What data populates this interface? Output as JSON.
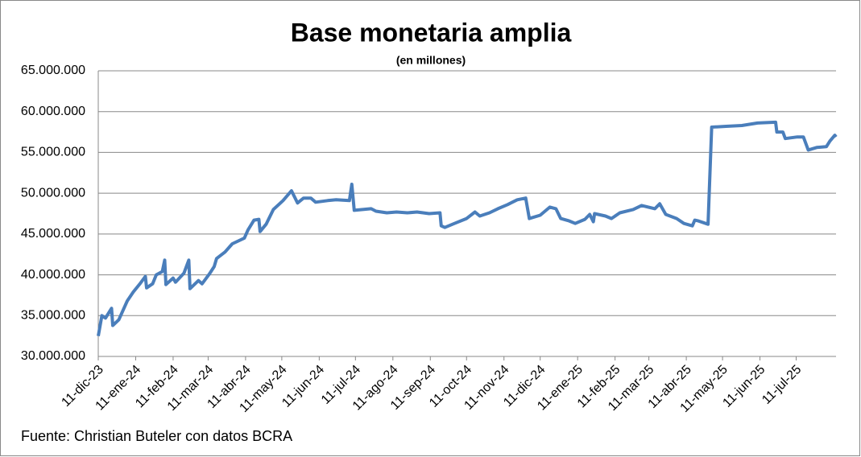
{
  "chart_data": {
    "type": "line",
    "title": "Base monetaria amplia",
    "subtitle": "(en millones)",
    "source": "Fuente: Christian Buteler  con datos BCRA",
    "color": "#4a7ebb",
    "grid": true,
    "x": [
      "2023-12-11",
      "2023-12-14",
      "2023-12-17",
      "2023-12-22",
      "2023-12-23",
      "2023-12-28",
      "2024-01-04",
      "2024-01-09",
      "2024-01-15",
      "2024-01-19",
      "2024-01-20",
      "2024-01-25",
      "2024-01-28",
      "2024-02-02",
      "2024-02-04",
      "2024-02-05",
      "2024-02-11",
      "2024-02-13",
      "2024-02-20",
      "2024-02-24",
      "2024-02-25",
      "2024-03-03",
      "2024-03-06",
      "2024-03-12",
      "2024-03-16",
      "2024-03-18",
      "2024-03-25",
      "2024-03-31",
      "2024-04-10",
      "2024-04-13",
      "2024-04-18",
      "2024-04-22",
      "2024-04-23",
      "2024-04-28",
      "2024-05-04",
      "2024-05-12",
      "2024-05-19",
      "2024-05-24",
      "2024-05-29",
      "2024-06-04",
      "2024-06-08",
      "2024-06-18",
      "2024-06-25",
      "2024-07-06",
      "2024-07-08",
      "2024-07-10",
      "2024-07-24",
      "2024-07-28",
      "2024-08-06",
      "2024-08-14",
      "2024-08-23",
      "2024-08-31",
      "2024-09-10",
      "2024-09-19",
      "2024-09-20",
      "2024-09-23",
      "2024-10-01",
      "2024-10-11",
      "2024-10-18",
      "2024-10-22",
      "2024-10-30",
      "2024-11-06",
      "2024-11-14",
      "2024-11-22",
      "2024-11-29",
      "2024-12-02",
      "2024-12-11",
      "2024-12-19",
      "2024-12-24",
      "2024-12-28",
      "2025-01-04",
      "2025-01-09",
      "2025-01-17",
      "2025-01-21",
      "2025-01-24",
      "2025-01-25",
      "2025-02-03",
      "2025-02-08",
      "2025-02-15",
      "2025-02-26",
      "2025-03-05",
      "2025-03-16",
      "2025-03-20",
      "2025-03-25",
      "2025-04-03",
      "2025-04-09",
      "2025-04-16",
      "2025-04-18",
      "2025-04-21",
      "2025-04-29",
      "2025-05-02",
      "2025-05-14",
      "2025-05-27",
      "2025-06-09",
      "2025-06-24",
      "2025-06-25",
      "2025-06-30",
      "2025-07-02",
      "2025-07-12",
      "2025-07-17",
      "2025-07-21",
      "2025-07-28",
      "2025-08-05",
      "2025-08-08",
      "2025-08-12",
      "2025-08-13"
    ],
    "values": [
      32500000,
      35000000,
      34700000,
      35900000,
      33800000,
      34500000,
      36800000,
      37900000,
      39000000,
      39800000,
      38400000,
      38900000,
      40000000,
      40400000,
      41800000,
      38800000,
      39600000,
      39100000,
      40200000,
      41800000,
      38300000,
      39300000,
      38900000,
      40100000,
      41000000,
      42000000,
      42800000,
      43800000,
      44500000,
      45500000,
      46700000,
      46800000,
      45300000,
      46200000,
      48000000,
      49100000,
      50300000,
      48800000,
      49400000,
      49400000,
      48900000,
      49100000,
      49200000,
      49100000,
      51100000,
      47900000,
      48100000,
      47800000,
      47600000,
      47700000,
      47600000,
      47700000,
      47500000,
      47600000,
      46000000,
      45800000,
      46300000,
      46900000,
      47700000,
      47200000,
      47600000,
      48100000,
      48600000,
      49200000,
      49400000,
      46900000,
      47300000,
      48300000,
      48100000,
      46900000,
      46600000,
      46300000,
      46800000,
      47400000,
      46500000,
      47500000,
      47200000,
      46900000,
      47600000,
      48000000,
      48500000,
      48100000,
      48700000,
      47400000,
      46900000,
      46300000,
      46000000,
      46700000,
      46600000,
      46200000,
      58100000,
      58200000,
      58300000,
      58600000,
      58700000,
      57500000,
      57500000,
      56700000,
      56900000,
      56900000,
      55300000,
      55600000,
      55700000,
      56400000,
      57100000,
      56900000
    ],
    "xlim": [
      "2023-12-11",
      "2025-08-13"
    ],
    "xticks": [
      {
        "value": "2023-12-11",
        "label": "11-dic-23"
      },
      {
        "value": "2024-01-11",
        "label": "11-ene-24"
      },
      {
        "value": "2024-02-11",
        "label": "11-feb-24"
      },
      {
        "value": "2024-03-11",
        "label": "11-mar-24"
      },
      {
        "value": "2024-04-11",
        "label": "11-abr-24"
      },
      {
        "value": "2024-05-11",
        "label": "11-may-24"
      },
      {
        "value": "2024-06-11",
        "label": "11-jun-24"
      },
      {
        "value": "2024-07-11",
        "label": "11-jul-24"
      },
      {
        "value": "2024-08-11",
        "label": "11-ago-24"
      },
      {
        "value": "2024-09-11",
        "label": "11-sep-24"
      },
      {
        "value": "2024-10-11",
        "label": "11-oct-24"
      },
      {
        "value": "2024-11-11",
        "label": "11-nov-24"
      },
      {
        "value": "2024-12-11",
        "label": "11-dic-24"
      },
      {
        "value": "2025-01-11",
        "label": "11-ene-25"
      },
      {
        "value": "2025-02-11",
        "label": "11-feb-25"
      },
      {
        "value": "2025-03-11",
        "label": "11-mar-25"
      },
      {
        "value": "2025-04-11",
        "label": "11-abr-25"
      },
      {
        "value": "2025-05-11",
        "label": "11-may-25"
      },
      {
        "value": "2025-06-11",
        "label": "11-jun-25"
      },
      {
        "value": "2025-07-11",
        "label": "11-jul-25"
      }
    ],
    "ylim": [
      30000000,
      65000000
    ],
    "yticks": [
      {
        "value": 30000000,
        "label": "30.000.000"
      },
      {
        "value": 35000000,
        "label": "35.000.000"
      },
      {
        "value": 40000000,
        "label": "40.000.000"
      },
      {
        "value": 45000000,
        "label": "45.000.000"
      },
      {
        "value": 50000000,
        "label": "50.000.000"
      },
      {
        "value": 55000000,
        "label": "55.000.000"
      },
      {
        "value": 60000000,
        "label": "60.000.000"
      },
      {
        "value": 65000000,
        "label": "65.000.000"
      }
    ]
  }
}
